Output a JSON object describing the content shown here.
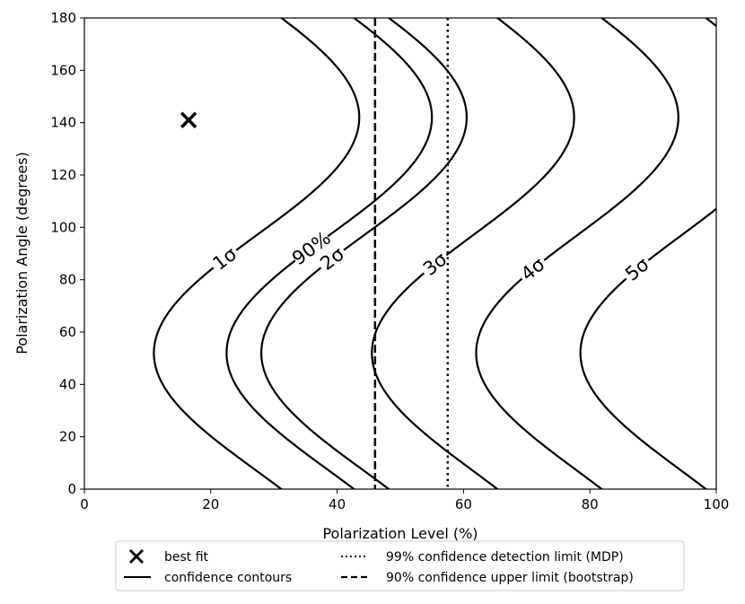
{
  "chart_data": {
    "type": "line",
    "xlabel": "Polarization Level (%)",
    "ylabel": "Polarization Angle (degrees)",
    "xlim": [
      0,
      100
    ],
    "ylim": [
      0,
      180
    ],
    "xticks": [
      "0",
      "20",
      "40",
      "60",
      "80",
      "100"
    ],
    "yticks": [
      "0",
      "20",
      "40",
      "60",
      "80",
      "100",
      "120",
      "140",
      "160",
      "180"
    ],
    "grid": false,
    "best_fit": {
      "x": 16.5,
      "y": 141
    },
    "contours": [
      {
        "name": "1σ",
        "label": "1σ",
        "xmin": 11.0,
        "xmax": 43.5,
        "label_at": [
          16,
          88
        ]
      },
      {
        "name": "90%",
        "label": "90%",
        "xmin": 22.5,
        "xmax": 55.0,
        "label_at": [
          32,
          92
        ]
      },
      {
        "name": "2σ",
        "label": "2σ",
        "xmin": 28.0,
        "xmax": 60.5,
        "label_at": [
          36.5,
          88
        ]
      },
      {
        "name": "3σ",
        "label": "3σ",
        "xmin": 45.5,
        "xmax": 77.5,
        "label_at": [
          52.5,
          86
        ]
      },
      {
        "name": "4σ",
        "label": "4σ",
        "xmin": 62.0,
        "xmax": 94.0,
        "label_at": [
          69.5,
          84
        ]
      },
      {
        "name": "5σ",
        "label": "5σ",
        "xmin": 78.5,
        "xmax": 110.5,
        "label_at": [
          86,
          84
        ]
      }
    ],
    "upper_limit_bootstrap_x": 46,
    "mdp_x": 57.5,
    "legend": {
      "placement": "below",
      "entries": [
        {
          "marker": "x",
          "text": "best fit"
        },
        {
          "marker": "solid",
          "text": "confidence contours"
        },
        {
          "marker": "dotted",
          "text": "99% confidence detection limit (MDP)"
        },
        {
          "marker": "dashed",
          "text": "90% confidence upper limit (bootstrap)"
        }
      ]
    }
  }
}
